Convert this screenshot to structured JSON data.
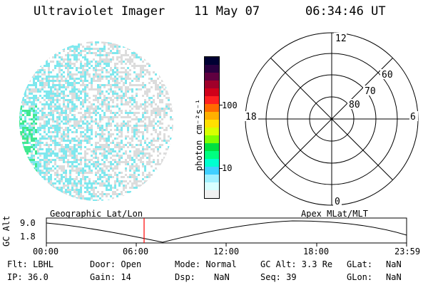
{
  "header": {
    "instrument": "Ultraviolet Imager",
    "date": "11 May 07",
    "time": "06:34:46 UT"
  },
  "colorbar": {
    "label": "photon cm⁻²s⁻¹",
    "ticks": [
      "100",
      "10"
    ],
    "colors": [
      "#000033",
      "#2a0040",
      "#600040",
      "#a0002a",
      "#d0001a",
      "#ff2020",
      "#ff6a00",
      "#ffb000",
      "#ffe000",
      "#d8ff00",
      "#80ff00",
      "#00e040",
      "#00ff80",
      "#00ffd0",
      "#40d0ff",
      "#a0f0ff",
      "#d8ffff",
      "#f0f0f0"
    ]
  },
  "polar": {
    "mlt_labels": {
      "top": "12",
      "left": "18",
      "right": "6",
      "bottom": "0"
    },
    "lat_labels": [
      "60",
      "70",
      "80"
    ]
  },
  "timeline": {
    "y_label": "GC Alt",
    "y_ticks": [
      "9.0",
      "1.8"
    ],
    "left_caption": "Geographic Lat/Lon",
    "right_caption": "Apex MLat/MLT",
    "x_ticks": [
      "00:00",
      "06:00",
      "12:00",
      "18:00",
      "23:59"
    ],
    "marker_color": "#ff0000"
  },
  "info": {
    "row1": {
      "flt": "Flt: LBHL",
      "door": "Door: Open",
      "mode": "Mode: Normal",
      "gcalt": "GC Alt: 3.3 Re",
      "glat_label": "GLat:",
      "glat_value": "NaN"
    },
    "row2": {
      "ip": "IP: 36.0",
      "gain": "Gain: 14",
      "dsp_label": "Dsp:",
      "dsp_value": "NaN",
      "seq": "Seq: 39",
      "glon_label": "GLon:",
      "glon_value": "NaN"
    }
  }
}
